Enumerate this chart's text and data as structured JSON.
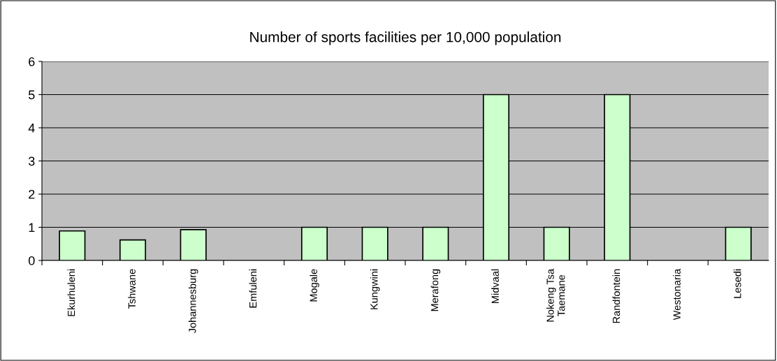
{
  "chart_data": {
    "type": "bar",
    "title": "Number of sports facilities per 10,000 population",
    "categories": [
      "Ekurhuleni",
      "Tshwane",
      "Johannesburg",
      "Emfuleni",
      "Mogale",
      "Kungwini",
      "Merafong",
      "Midvaal",
      "Nokeng Tsa\nTaemane",
      "Randfontein",
      "Westonaria",
      "Lesedi"
    ],
    "values": [
      0.89,
      0.62,
      0.93,
      0,
      1,
      1,
      1,
      5,
      1,
      5,
      0,
      1
    ],
    "color": "#ccffcc",
    "ylim": [
      0,
      6
    ],
    "yticks": [
      0,
      1,
      2,
      3,
      4,
      5,
      6
    ],
    "grid": "y",
    "legend": false
  }
}
